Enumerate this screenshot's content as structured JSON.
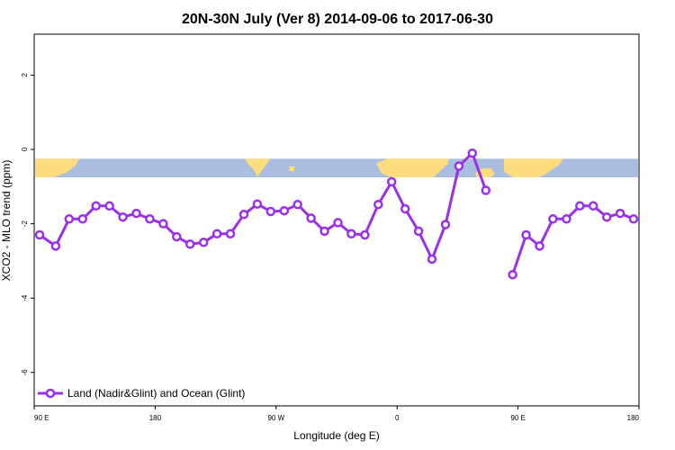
{
  "chart_data": {
    "type": "line",
    "title": "20N-30N July (Ver 8)   2014-09-06 to 2017-06-30",
    "xlabel": "Longitude (deg E)",
    "ylabel": "XCO2 - MLO trend (ppm)",
    "x_tick_labels": [
      "90 E",
      "180",
      "90 W",
      "0",
      "90 E",
      "180"
    ],
    "x_tick_values": [
      90,
      180,
      270,
      360,
      450,
      540
    ],
    "xlim": [
      90,
      540
    ],
    "y_tick_labels": [
      "-6",
      "-4",
      "-2",
      "0",
      "2"
    ],
    "y_tick_values": [
      -6,
      -4,
      -2,
      0,
      2
    ],
    "ylim": [
      -6.9,
      3.1
    ],
    "grid": false,
    "legend_position": "bottom-left",
    "colors": {
      "series": "#9b30e8",
      "ocean": "#a9bedf",
      "land": "#fddc7e"
    },
    "map_band": {
      "y_top": -0.25,
      "y_bottom": -0.75
    },
    "series": [
      {
        "name": "Land (Nadir&Glint) and Ocean (Glint)",
        "segments": [
          [
            [
              94,
              -2.3
            ],
            [
              106,
              -2.6
            ],
            [
              116,
              -1.87
            ],
            [
              126,
              -1.87
            ],
            [
              136,
              -1.52
            ],
            [
              146,
              -1.52
            ],
            [
              156,
              -1.82
            ],
            [
              166,
              -1.72
            ],
            [
              176,
              -1.87
            ],
            [
              186,
              -2.0
            ],
            [
              196,
              -2.35
            ],
            [
              206,
              -2.55
            ],
            [
              216,
              -2.5
            ],
            [
              226,
              -2.27
            ],
            [
              236,
              -2.27
            ],
            [
              246,
              -1.75
            ],
            [
              256,
              -1.47
            ],
            [
              266,
              -1.67
            ],
            [
              276,
              -1.65
            ],
            [
              286,
              -1.48
            ],
            [
              296,
              -1.85
            ],
            [
              306,
              -2.2
            ],
            [
              316,
              -1.97
            ],
            [
              326,
              -2.27
            ],
            [
              336,
              -2.3
            ],
            [
              346,
              -1.48
            ],
            [
              356,
              -0.87
            ],
            [
              366,
              -1.6
            ],
            [
              376,
              -2.2
            ],
            [
              386,
              -2.95
            ],
            [
              396,
              -2.02
            ],
            [
              406,
              -0.45
            ],
            [
              416,
              -0.1
            ],
            [
              426,
              -1.1
            ]
          ],
          [
            [
              446,
              -3.37
            ],
            [
              456,
              -2.3
            ],
            [
              466,
              -2.6
            ],
            [
              476,
              -1.87
            ],
            [
              486,
              -1.87
            ],
            [
              496,
              -1.52
            ],
            [
              506,
              -1.52
            ],
            [
              516,
              -1.82
            ],
            [
              526,
              -1.72
            ],
            [
              536,
              -1.87
            ]
          ]
        ]
      }
    ]
  }
}
